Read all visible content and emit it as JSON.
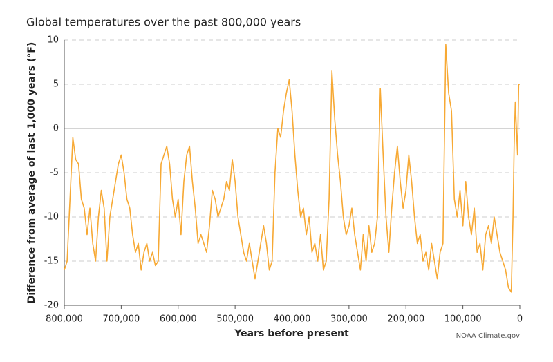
{
  "chart_data": {
    "type": "line",
    "title": "Global temperatures over the past 800,000 years",
    "x_label": "Years before present",
    "y_label": "Difference from average of last 1,000 years (°F)",
    "source": "NOAA Climate.gov",
    "xlim": [
      800000,
      0
    ],
    "xticks": [
      {
        "value": 800000,
        "label": "800,000"
      },
      {
        "value": 700000,
        "label": "700,000"
      },
      {
        "value": 600000,
        "label": "600,000"
      },
      {
        "value": 500000,
        "label": "500,000"
      },
      {
        "value": 400000,
        "label": "400,000"
      },
      {
        "value": 300000,
        "label": "300,000"
      },
      {
        "value": 200000,
        "label": "200,000"
      },
      {
        "value": 100000,
        "label": "100,000"
      },
      0
    ],
    "ylim": [
      -20,
      10
    ],
    "yticks": [
      -20,
      -15,
      -10,
      -5,
      0,
      5,
      10
    ],
    "grid": true,
    "x": [
      800000,
      795000,
      790000,
      785000,
      780000,
      775000,
      770000,
      765000,
      760000,
      755000,
      750000,
      745000,
      740000,
      735000,
      730000,
      725000,
      720000,
      715000,
      710000,
      705000,
      700000,
      695000,
      690000,
      685000,
      680000,
      675000,
      670000,
      665000,
      660000,
      655000,
      650000,
      645000,
      640000,
      635000,
      630000,
      625000,
      620000,
      615000,
      610000,
      605000,
      600000,
      595000,
      590000,
      585000,
      580000,
      575000,
      570000,
      565000,
      560000,
      555000,
      550000,
      545000,
      540000,
      535000,
      530000,
      525000,
      520000,
      515000,
      510000,
      505000,
      500000,
      495000,
      490000,
      485000,
      480000,
      475000,
      470000,
      465000,
      460000,
      455000,
      450000,
      445000,
      440000,
      435000,
      430000,
      425000,
      420000,
      415000,
      410000,
      405000,
      400000,
      395000,
      390000,
      385000,
      380000,
      375000,
      370000,
      365000,
      360000,
      355000,
      350000,
      345000,
      340000,
      335000,
      330000,
      325000,
      320000,
      315000,
      310000,
      305000,
      300000,
      295000,
      290000,
      285000,
      280000,
      275000,
      270000,
      265000,
      260000,
      255000,
      250000,
      245000,
      240000,
      235000,
      230000,
      225000,
      220000,
      215000,
      210000,
      205000,
      200000,
      195000,
      190000,
      185000,
      180000,
      175000,
      170000,
      165000,
      160000,
      155000,
      150000,
      145000,
      140000,
      135000,
      130000,
      125000,
      120000,
      115000,
      110000,
      105000,
      100000,
      95000,
      90000,
      85000,
      80000,
      75000,
      70000,
      65000,
      60000,
      55000,
      50000,
      45000,
      40000,
      35000,
      30000,
      25000,
      20000,
      15000,
      12000,
      10000,
      8000,
      6000,
      4000,
      2000,
      0
    ],
    "series": [
      {
        "name": "Temperature",
        "color": "#f7a934",
        "values": [
          -16,
          -15,
          -8,
          -1,
          -3.5,
          -4,
          -8,
          -9,
          -12,
          -9,
          -13,
          -15,
          -10,
          -7,
          -9,
          -15,
          -10,
          -8,
          -6,
          -4,
          -3,
          -5,
          -8,
          -9,
          -12,
          -14,
          -13,
          -16,
          -14,
          -13,
          -15,
          -14,
          -15.5,
          -15,
          -4,
          -3,
          -2,
          -4,
          -8,
          -10,
          -8,
          -12,
          -6,
          -3,
          -2,
          -6,
          -9,
          -13,
          -12,
          -13,
          -14,
          -11,
          -7,
          -8,
          -10,
          -9,
          -8,
          -6,
          -7,
          -3.5,
          -6,
          -10,
          -12,
          -14,
          -15,
          -13,
          -15,
          -17,
          -15,
          -13,
          -11,
          -13,
          -16,
          -15,
          -5,
          0,
          -1,
          2,
          4,
          5.5,
          2,
          -3,
          -7,
          -10,
          -9,
          -12,
          -10,
          -14,
          -13,
          -15,
          -12,
          -16,
          -15,
          -8,
          6.5,
          1,
          -3,
          -6,
          -10,
          -12,
          -11,
          -9,
          -12,
          -14,
          -16,
          -12,
          -15,
          -11,
          -14,
          -13,
          -10,
          4.5,
          -3,
          -10,
          -14,
          -9,
          -5,
          -2,
          -6,
          -9,
          -7,
          -3,
          -6,
          -10,
          -13,
          -12,
          -15,
          -14,
          -16,
          -13,
          -15,
          -17,
          -14,
          -13,
          9.5,
          4,
          2,
          -8,
          -10,
          -7,
          -11,
          -6,
          -10,
          -12,
          -9,
          -14,
          -13,
          -16,
          -12,
          -11,
          -13,
          -10,
          -12,
          -14,
          -15,
          -16,
          -18,
          -18.5,
          -10,
          -2,
          3,
          0,
          -3,
          5,
          5
        ]
      }
    ]
  }
}
